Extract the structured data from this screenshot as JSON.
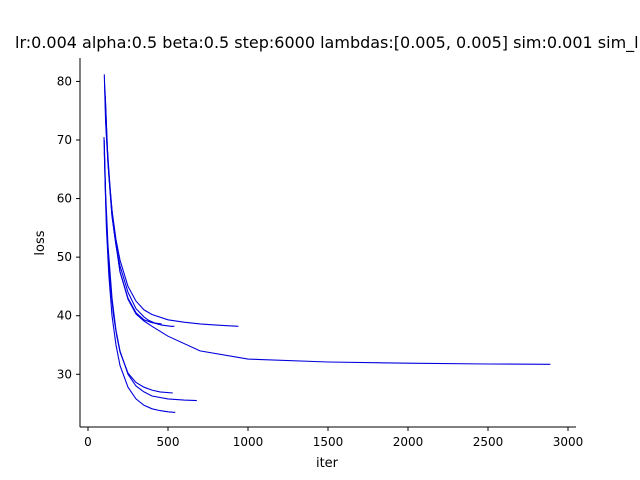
{
  "chart_data": {
    "type": "line",
    "title": "lr:0.004 alpha:0.5 beta:0.5 step:6000 lambdas:[0.005, 0.005] sim:0.001 sim_l",
    "xlabel": "iter",
    "ylabel": "loss",
    "xlim": [
      -50,
      3050
    ],
    "ylim": [
      21,
      84
    ],
    "xticks": [
      0,
      500,
      1000,
      1500,
      2000,
      2500,
      3000
    ],
    "yticks": [
      30,
      40,
      50,
      60,
      70,
      80
    ],
    "grid": false,
    "legend": "none",
    "line_color": "#0000dd",
    "series": [
      {
        "x": [
          102,
          110,
          125,
          150,
          175,
          200,
          250,
          300,
          350,
          400,
          500,
          600,
          700,
          800,
          940
        ],
        "y": [
          81.2,
          73,
          66,
          58,
          53,
          49.5,
          45,
          42.5,
          41,
          40.2,
          39.3,
          38.9,
          38.6,
          38.4,
          38.2
        ]
      },
      {
        "x": [
          104,
          115,
          130,
          150,
          175,
          200,
          250,
          300,
          350,
          380,
          420,
          460,
          520,
          540
        ],
        "y": [
          79.5,
          71,
          64,
          57,
          52,
          48.5,
          44,
          41.2,
          39.8,
          39.2,
          38.7,
          38.4,
          38.2,
          38.2
        ]
      },
      {
        "x": [
          106,
          120,
          140,
          160,
          200,
          250,
          300,
          350,
          400,
          500,
          700,
          1000,
          1500,
          2000,
          2500,
          2890
        ],
        "y": [
          78.5,
          69,
          61,
          55,
          47.5,
          42.8,
          40.3,
          39.1,
          38.2,
          36.5,
          34,
          32.6,
          32.1,
          31.9,
          31.75,
          31.7
        ]
      },
      {
        "x": [
          108,
          125,
          150,
          200,
          250,
          300,
          350,
          400,
          430,
          460
        ],
        "y": [
          77.5,
          66,
          57,
          47.5,
          43,
          40.5,
          39.3,
          38.8,
          38.7,
          38.6
        ]
      },
      {
        "x": [
          100,
          110,
          120,
          140,
          160,
          180,
          200,
          250,
          300,
          350,
          400,
          450,
          530
        ],
        "y": [
          70.5,
          60,
          53,
          45,
          40,
          36.5,
          33.8,
          30.2,
          28.6,
          27.8,
          27.3,
          27,
          26.8
        ]
      },
      {
        "x": [
          101,
          110,
          125,
          150,
          175,
          200,
          250,
          300,
          350,
          400,
          500,
          600,
          680
        ],
        "y": [
          70,
          61,
          52,
          43,
          37.5,
          34,
          30,
          28,
          27,
          26.3,
          25.8,
          25.6,
          25.5
        ]
      },
      {
        "x": [
          102,
          115,
          130,
          150,
          175,
          200,
          250,
          300,
          350,
          400,
          450,
          500,
          545
        ],
        "y": [
          68,
          55,
          47,
          40,
          35,
          31.5,
          27.8,
          25.8,
          24.7,
          24.1,
          23.8,
          23.6,
          23.5
        ]
      }
    ]
  }
}
